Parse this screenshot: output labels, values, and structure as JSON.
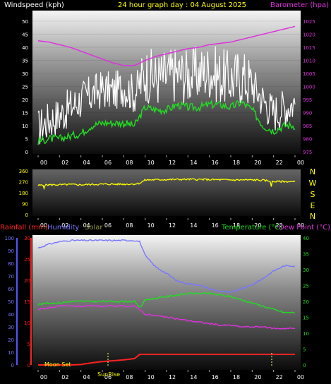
{
  "header": {
    "windspeed_label": "Windspeed (kph)",
    "title": "24 hour graph day : 04 August 2025",
    "barometer_label": "Barometer (hpa)"
  },
  "legend_bottom": {
    "rainfall": "Rainfall (mm)",
    "humidity": "Humidity",
    "solar": "Solar",
    "temperature": "Temperature (°C)",
    "dewpoint": "Dew Point (°C)"
  },
  "annotations": {
    "moon_set": "Moon Set",
    "sunrise": "SunRise"
  },
  "compass": [
    "N",
    "W",
    "S",
    "E",
    "N"
  ],
  "colors": {
    "wind": "#ffffff",
    "gust": "#ffffff",
    "avg_wind": "#22dd22",
    "barometer": "#dd33dd",
    "direction": "#ffff00",
    "rainfall": "#ff2222",
    "humidity": "#7777ff",
    "solar": "#999944",
    "temperature": "#22dd22",
    "dewpoint": "#dd33dd",
    "title": "#ffff00",
    "compass": "#ffff00"
  },
  "chart_data": [
    {
      "type": "line",
      "name": "wind-barometer",
      "x_ticks": [
        "00",
        "02",
        "04",
        "06",
        "08",
        "10",
        "12",
        "14",
        "16",
        "18",
        "20",
        "22",
        "00"
      ],
      "y_left": {
        "label": "Windspeed (kph)",
        "ylim": [
          0,
          50
        ],
        "ticks": [
          0,
          5,
          10,
          15,
          20,
          25,
          30,
          35,
          40,
          45,
          50
        ]
      },
      "y_right": {
        "label": "Barometer (hpa)",
        "ylim": [
          975,
          1025
        ],
        "ticks": [
          975,
          980,
          985,
          990,
          995,
          1000,
          1005,
          1010,
          1015,
          1020,
          1025
        ]
      },
      "hours": [
        0,
        1,
        2,
        3,
        4,
        5,
        6,
        7,
        8,
        9,
        10,
        11,
        12,
        13,
        14,
        15,
        16,
        17,
        18,
        19,
        20,
        21,
        22,
        23,
        24
      ],
      "series": [
        {
          "name": "Windspeed (kph)",
          "key": "gust",
          "values": [
            9,
            12,
            14,
            17,
            20,
            22,
            24,
            23,
            25,
            22,
            30,
            28,
            29,
            30,
            29,
            30,
            31,
            29,
            28,
            29,
            26,
            20,
            15,
            17,
            19
          ]
        },
        {
          "name": "Windspeed (kph)",
          "key": "avg_wind",
          "values": [
            4,
            5,
            5,
            6,
            7,
            10,
            11,
            11,
            11,
            10,
            17,
            16,
            16,
            18,
            17,
            17,
            18,
            18,
            17,
            19,
            16,
            10,
            8,
            10,
            10
          ]
        },
        {
          "name": "Barometer (hpa)",
          "key": "barometer",
          "values": [
            1017.5,
            1017,
            1016,
            1015,
            1013.5,
            1012,
            1010.5,
            1009,
            1008,
            1008,
            1010,
            1011.5,
            1012.5,
            1013.5,
            1014.5,
            1015,
            1016,
            1016.5,
            1017,
            1018,
            1019,
            1020,
            1021,
            1022,
            1023
          ]
        }
      ]
    },
    {
      "type": "line",
      "name": "wind-direction",
      "x_ticks": [
        "00",
        "02",
        "04",
        "06",
        "08",
        "10",
        "12",
        "14",
        "16",
        "18",
        "20",
        "22",
        "00"
      ],
      "y_left": {
        "ylim": [
          0,
          360
        ],
        "ticks": [
          0,
          90,
          180,
          270,
          360
        ]
      },
      "hours": [
        0,
        1,
        2,
        3,
        4,
        5,
        6,
        7,
        8,
        9,
        9.5,
        10,
        12,
        14,
        16,
        18,
        20,
        21,
        22,
        23,
        24
      ],
      "series": [
        {
          "name": "Direction",
          "key": "direction",
          "values": [
            240,
            245,
            245,
            248,
            245,
            248,
            250,
            250,
            250,
            252,
            258,
            285,
            288,
            290,
            288,
            285,
            285,
            282,
            272,
            272,
            270
          ]
        }
      ]
    },
    {
      "type": "line",
      "name": "temp-humidity",
      "x_ticks": [
        "00",
        "02",
        "04",
        "06",
        "08",
        "10",
        "12",
        "14",
        "16",
        "18",
        "20",
        "22",
        "00"
      ],
      "y_left_humidity": {
        "ylim": [
          0,
          100
        ],
        "ticks": [
          0,
          10,
          20,
          30,
          40,
          50,
          60,
          70,
          80,
          90,
          100
        ]
      },
      "y_left_rain": {
        "ylim": [
          0,
          30
        ],
        "ticks": [
          0,
          5,
          10,
          15,
          20,
          25,
          30
        ]
      },
      "y_right": {
        "ylim": [
          0,
          40
        ],
        "ticks": [
          0,
          5,
          10,
          15,
          20,
          25,
          30,
          35,
          40
        ]
      },
      "hours": [
        0,
        1,
        2,
        3,
        4,
        5,
        6,
        7,
        8,
        9,
        9.5,
        10,
        11,
        12,
        13,
        14,
        15,
        16,
        17,
        18,
        19,
        20,
        21,
        22,
        23,
        24
      ],
      "series": [
        {
          "name": "Humidity",
          "key": "humidity",
          "axis": "humidity",
          "values": [
            92,
            95,
            97,
            98,
            98,
            98,
            98,
            98,
            98,
            98,
            97,
            86,
            77,
            72,
            66,
            64,
            63,
            60,
            58,
            57,
            60,
            63,
            68,
            74,
            78,
            78
          ]
        },
        {
          "name": "Temperature (°C)",
          "key": "temperature",
          "axis": "right",
          "values": [
            19,
            19.5,
            19.5,
            20,
            20,
            20,
            20,
            20,
            20,
            20,
            18,
            20.5,
            21,
            21.5,
            22,
            22.5,
            22.5,
            22.5,
            22,
            21.5,
            20.5,
            19.5,
            18.5,
            17.5,
            16.5,
            16.5
          ]
        },
        {
          "name": "Dew Point (°C)",
          "key": "dewpoint",
          "axis": "right",
          "values": [
            17.5,
            18,
            18.5,
            18.5,
            18.5,
            18.5,
            18.5,
            18.5,
            18.5,
            18.5,
            17.5,
            16,
            15.5,
            15,
            14.5,
            14,
            13.5,
            13,
            12.5,
            12.5,
            12,
            12,
            12,
            11.5,
            11.5,
            11.5
          ]
        },
        {
          "name": "Rainfall (mm)",
          "key": "rainfall",
          "axis": "rain",
          "values": [
            0,
            0,
            0,
            0,
            0.1,
            0.5,
            0.8,
            1.0,
            1.2,
            1.5,
            2.5,
            2.5,
            2.5,
            2.5,
            2.5,
            2.5,
            2.5,
            2.5,
            2.5,
            2.5,
            2.5,
            2.5,
            2.5,
            2.5,
            2.5,
            2.5
          ]
        }
      ]
    }
  ]
}
